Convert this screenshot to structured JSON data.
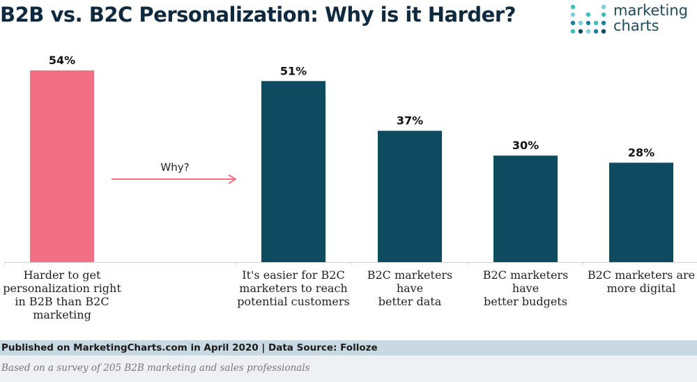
{
  "header": {
    "title": "B2B vs. B2C Personalization: Why is it Harder?",
    "logo_line1": "marketing",
    "logo_line2": "charts"
  },
  "chart_data": {
    "type": "bar",
    "title": "B2B vs. B2C Personalization: Why is it Harder?",
    "categories": [
      "Harder to get personalization right in B2B than B2C marketing",
      "It's easier for B2C marketers to reach potential customers",
      "B2C marketers have better data",
      "B2C marketers have better budgets",
      "B2C marketers are more digital"
    ],
    "values": [
      54,
      51,
      37,
      30,
      28
    ],
    "value_labels": [
      "54%",
      "51%",
      "37%",
      "30%",
      "28%"
    ],
    "unit": "%",
    "ylim": [
      0,
      60
    ],
    "grid": false,
    "legend": "none",
    "annotation": "Why?",
    "colors": [
      "#f36f85",
      "#0e4a60",
      "#0e4a60",
      "#0e4a60",
      "#0e4a60"
    ]
  },
  "category_labels": [
    [
      "Harder to get",
      "personalization right",
      "in B2B than B2C",
      "marketing"
    ],
    [
      "It's easier for B2C",
      "marketers to reach",
      "potential customers"
    ],
    [
      "B2C marketers have",
      "better data"
    ],
    [
      "B2C marketers have",
      "better budgets"
    ],
    [
      "B2C marketers are",
      "more digital"
    ]
  ],
  "footer": {
    "published": "Published on MarketingCharts.com in April 2020 | Data Source: Folloze",
    "note": "Based on a survey of 205 B2B marketing and sales professionals"
  },
  "colors": {
    "title": "#0f2a3f",
    "accent_pink": "#f36f85",
    "accent_teal": "#0e4a60",
    "logo_dots": [
      "#3fbfb6",
      "#1f7fa0",
      "#7fd0d8",
      "#0e4a60"
    ],
    "footer_bar": "#c9d9e2"
  }
}
